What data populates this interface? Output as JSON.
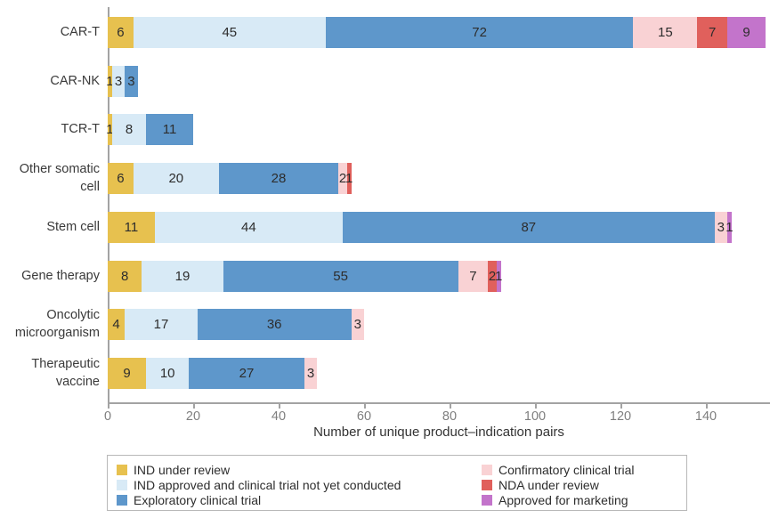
{
  "chart_data": {
    "type": "bar",
    "orientation": "horizontal",
    "stacked": true,
    "title": "",
    "xlabel": "Number of unique product–indication pairs",
    "ylabel": "",
    "xticks": [
      0,
      20,
      40,
      60,
      80,
      100,
      120,
      140
    ],
    "xlim": [
      0,
      155
    ],
    "grid": false,
    "legend_position": "bottom",
    "categories": [
      "CAR-T",
      "CAR-NK",
      "TCR-T",
      "Other somatic cell",
      "Stem cell",
      "Gene therapy",
      "Oncolytic microorganism",
      "Therapeutic vaccine"
    ],
    "series": [
      {
        "name": "IND under review",
        "color": "#E7C14F",
        "values": [
          6,
          1,
          1,
          6,
          11,
          8,
          4,
          9
        ]
      },
      {
        "name": "IND approved and clinical trial not yet conducted",
        "color": "#D8EAF6",
        "values": [
          45,
          3,
          8,
          20,
          44,
          19,
          17,
          10
        ]
      },
      {
        "name": "Exploratory clinical trial",
        "color": "#5E97CB",
        "values": [
          72,
          3,
          11,
          28,
          87,
          55,
          36,
          27
        ]
      },
      {
        "name": "Confirmatory clinical trial",
        "color": "#F9D2D4",
        "values": [
          15,
          0,
          0,
          2,
          3,
          7,
          3,
          3
        ]
      },
      {
        "name": "NDA under review",
        "color": "#E0605C",
        "values": [
          7,
          0,
          0,
          1,
          0,
          2,
          0,
          0
        ]
      },
      {
        "name": "Approved for marketing",
        "color": "#C374CB",
        "values": [
          9,
          0,
          0,
          0,
          1,
          1,
          0,
          0
        ]
      }
    ],
    "legend_columns": [
      [
        0,
        1,
        2
      ],
      [
        3,
        4,
        5
      ]
    ]
  },
  "colors": {
    "axis": "#a3a3a3",
    "tick_label": "#7f7f7f",
    "value_label": "#2d2d2d",
    "category_label": "#3a3a3a",
    "legend_border": "#b8b8b8",
    "background": "#ffffff"
  }
}
